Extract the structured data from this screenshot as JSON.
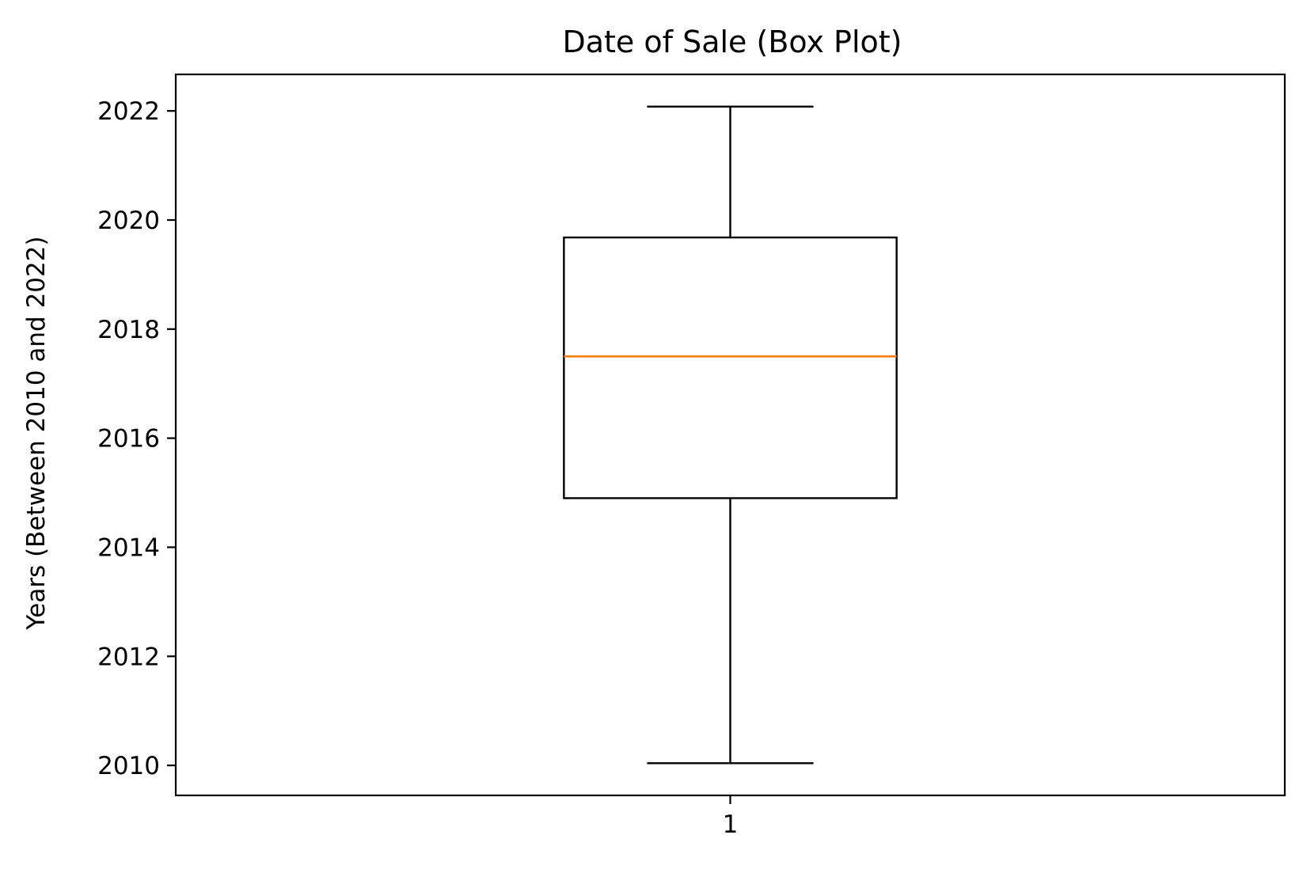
{
  "chart_data": {
    "type": "box",
    "title": "Date of Sale (Box Plot)",
    "xlabel": "",
    "ylabel": "Years (Between 2010 and 2022)",
    "categories": [
      "1"
    ],
    "ylim": [
      2009.45,
      2022.67
    ],
    "yticks": [
      2010,
      2012,
      2014,
      2016,
      2018,
      2020,
      2022
    ],
    "boxes": [
      {
        "category": "1",
        "whisker_low": 2010.04,
        "q1": 2014.9,
        "median": 2017.5,
        "q3": 2019.68,
        "whisker_high": 2022.08
      }
    ],
    "grid": false,
    "colors": {
      "box": "#000000",
      "median": "#ff7f0e"
    }
  }
}
